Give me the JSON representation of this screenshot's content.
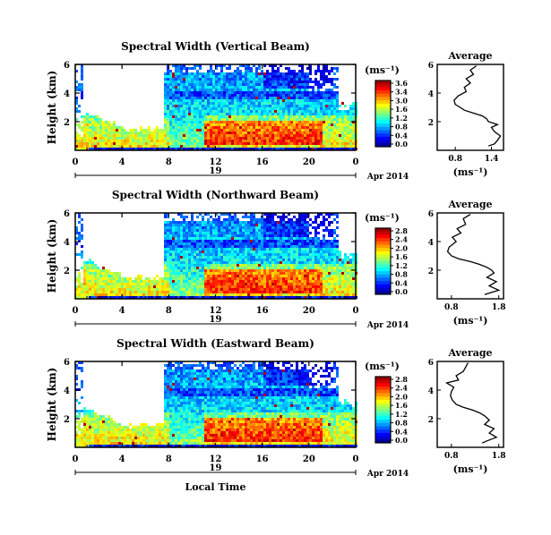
{
  "chart_data": [
    {
      "type": "heatmap",
      "title": "Spectral Width (Vertical Beam)",
      "ylabel": "Height (km)",
      "xticks": [
        "0",
        "4",
        "8",
        "12",
        "16",
        "20",
        "0"
      ],
      "yticks": [
        "6",
        "4",
        "2"
      ],
      "ylim": [
        0,
        6
      ],
      "xlim": [
        0,
        24
      ],
      "date_day": "19",
      "date_label": "Apr 2014",
      "colorbar": {
        "unit": "(ms⁻¹)",
        "ticks": [
          "3.6",
          "3.4",
          "3.0",
          "1.6",
          "1.2",
          "0.8",
          "0.4",
          "0.0"
        ]
      },
      "average": {
        "title": "Average",
        "xlabel": "(ms⁻¹)",
        "xticks": [
          "0.8",
          "1.4"
        ],
        "xlim": [
          0.5,
          1.6
        ],
        "yticks": [
          "6",
          "4",
          "2"
        ],
        "ylim": [
          0,
          6
        ],
        "profile": [
          [
            1.15,
            5.9
          ],
          [
            1.05,
            5.6
          ],
          [
            1.1,
            5.3
          ],
          [
            0.98,
            5.0
          ],
          [
            1.05,
            4.7
          ],
          [
            0.95,
            4.4
          ],
          [
            0.98,
            4.1
          ],
          [
            0.85,
            3.8
          ],
          [
            0.78,
            3.5
          ],
          [
            0.8,
            3.2
          ],
          [
            0.88,
            3.0
          ],
          [
            0.95,
            2.8
          ],
          [
            1.1,
            2.6
          ],
          [
            1.25,
            2.4
          ],
          [
            1.32,
            2.2
          ],
          [
            1.35,
            2.0
          ],
          [
            1.5,
            1.8
          ],
          [
            1.4,
            1.6
          ],
          [
            1.45,
            1.3
          ],
          [
            1.55,
            1.0
          ],
          [
            1.5,
            0.7
          ],
          [
            1.45,
            0.45
          ],
          [
            1.35,
            0.3
          ]
        ]
      }
    },
    {
      "type": "heatmap",
      "title": "Spectral Width (Northward Beam)",
      "ylabel": "Height (km)",
      "xticks": [
        "0",
        "4",
        "8",
        "12",
        "16",
        "20",
        "0"
      ],
      "yticks": [
        "6",
        "4",
        "2"
      ],
      "ylim": [
        0,
        6
      ],
      "xlim": [
        0,
        24
      ],
      "date_day": "19",
      "date_label": "Apr 2014",
      "colorbar": {
        "unit": "(ms⁻¹)",
        "ticks": [
          "2.8",
          "2.4",
          "2.0",
          "1.6",
          "1.2",
          "0.8",
          "0.4",
          "0.0"
        ]
      },
      "average": {
        "title": "Average",
        "xlabel": "(ms⁻¹)",
        "xticks": [
          "0.8",
          "1.8"
        ],
        "xlim": [
          0.5,
          1.9
        ],
        "yticks": [
          "6",
          "4",
          "2"
        ],
        "ylim": [
          0,
          6
        ],
        "profile": [
          [
            1.2,
            5.9
          ],
          [
            1.05,
            5.6
          ],
          [
            1.1,
            5.2
          ],
          [
            0.92,
            4.9
          ],
          [
            1.0,
            4.6
          ],
          [
            0.82,
            4.3
          ],
          [
            0.9,
            4.0
          ],
          [
            0.75,
            3.6
          ],
          [
            0.72,
            3.3
          ],
          [
            0.8,
            3.0
          ],
          [
            0.95,
            2.8
          ],
          [
            1.2,
            2.6
          ],
          [
            1.4,
            2.4
          ],
          [
            1.55,
            2.2
          ],
          [
            1.65,
            2.0
          ],
          [
            1.7,
            1.8
          ],
          [
            1.55,
            1.5
          ],
          [
            1.75,
            1.2
          ],
          [
            1.6,
            0.9
          ],
          [
            1.8,
            0.6
          ],
          [
            1.6,
            0.4
          ],
          [
            1.5,
            0.3
          ]
        ]
      }
    },
    {
      "type": "heatmap",
      "title": "Spectral Width (Eastward Beam)",
      "ylabel": "Height (km)",
      "xlabel": "Local Time",
      "xticks": [
        "0",
        "4",
        "8",
        "12",
        "16",
        "20",
        "0"
      ],
      "yticks": [
        "6",
        "4",
        "2"
      ],
      "ylim": [
        0,
        6
      ],
      "xlim": [
        0,
        24
      ],
      "date_day": "19",
      "date_label": "Apr 2014",
      "colorbar": {
        "unit": "(ms⁻¹)",
        "ticks": [
          "2.8",
          "2.4",
          "2.0",
          "1.6",
          "1.2",
          "0.8",
          "0.4",
          "0.0"
        ]
      },
      "average": {
        "title": "Average",
        "xlabel": "(ms⁻¹)",
        "xticks": [
          "0.8",
          "1.8"
        ],
        "xlim": [
          0.5,
          1.9
        ],
        "yticks": [
          "6",
          "4",
          "2"
        ],
        "ylim": [
          0,
          6
        ],
        "profile": [
          [
            1.15,
            5.9
          ],
          [
            1.1,
            5.6
          ],
          [
            1.05,
            5.3
          ],
          [
            0.9,
            5.0
          ],
          [
            0.95,
            4.7
          ],
          [
            0.7,
            4.5
          ],
          [
            0.85,
            4.2
          ],
          [
            0.8,
            3.9
          ],
          [
            0.78,
            3.6
          ],
          [
            0.82,
            3.3
          ],
          [
            0.9,
            3.0
          ],
          [
            1.05,
            2.8
          ],
          [
            1.25,
            2.6
          ],
          [
            1.4,
            2.4
          ],
          [
            1.5,
            2.2
          ],
          [
            1.6,
            1.9
          ],
          [
            1.5,
            1.6
          ],
          [
            1.7,
            1.3
          ],
          [
            1.6,
            1.0
          ],
          [
            1.75,
            0.7
          ],
          [
            1.55,
            0.45
          ],
          [
            1.45,
            0.3
          ]
        ]
      }
    }
  ]
}
